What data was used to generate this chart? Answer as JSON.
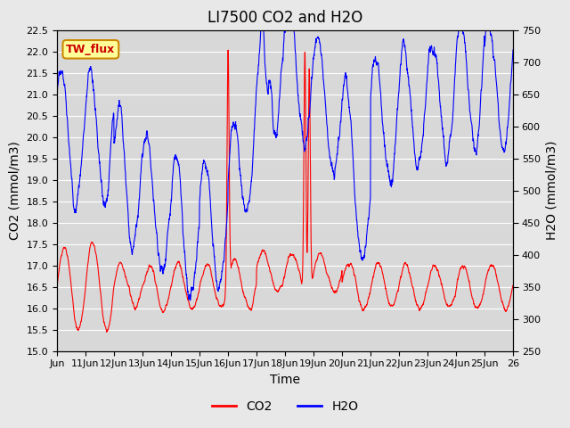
{
  "title": "LI7500 CO2 and H2O",
  "xlabel": "Time",
  "ylabel_left": "CO2 (mmol/m3)",
  "ylabel_right": "H2O (mmol/m3)",
  "co2_ylim": [
    15.0,
    22.5
  ],
  "h2o_ylim": [
    250,
    750
  ],
  "co2_color": "#ff0000",
  "h2o_color": "#0000ff",
  "bg_color": "#e8e8e8",
  "plot_bg_color": "#d8d8d8",
  "annotation_text": "TW_flux",
  "annotation_bg": "#ffff99",
  "annotation_border": "#cc8800",
  "annotation_text_color": "#cc0000",
  "x_tick_labels": [
    "Jun",
    "11Jun",
    "12Jun",
    "13Jun",
    "14Jun",
    "15Jun",
    "16Jun",
    "17Jun",
    "18Jun",
    "19Jun",
    "20Jun",
    "21Jun",
    "22Jun",
    "23Jun",
    "24Jun",
    "25Jun",
    "26"
  ],
  "title_fontsize": 12,
  "axis_label_fontsize": 10,
  "tick_fontsize": 8
}
